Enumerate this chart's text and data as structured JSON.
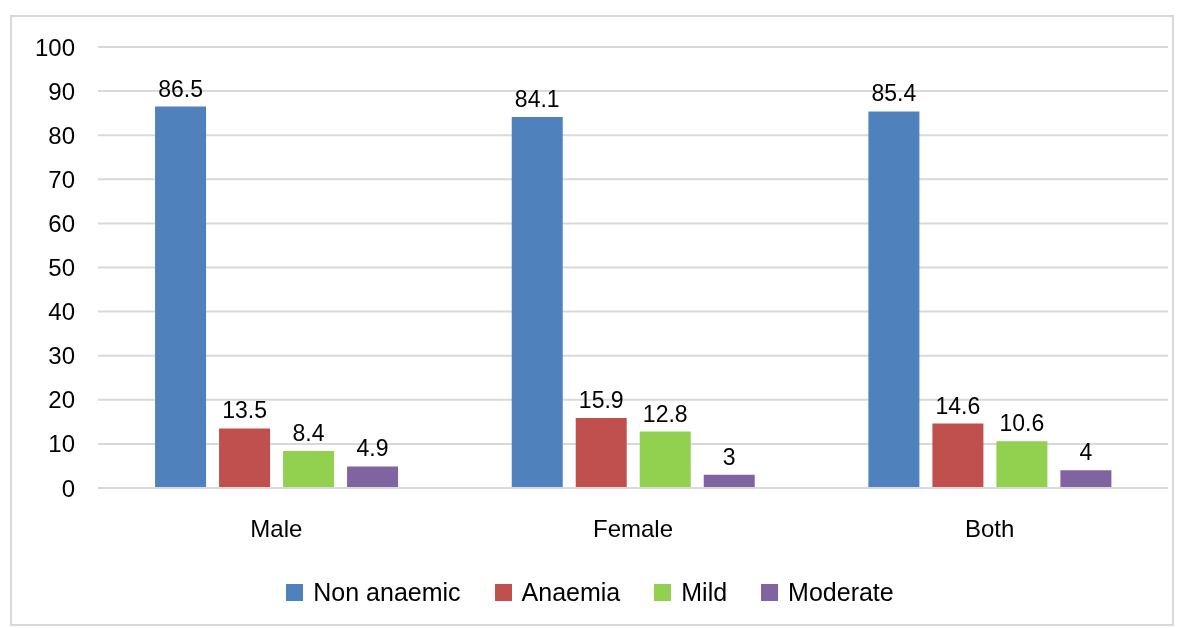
{
  "chart_data": {
    "type": "bar",
    "categories": [
      "Male",
      "Female",
      "Both"
    ],
    "series": [
      {
        "name": "Non anaemic",
        "color": "#4f81bd",
        "values": [
          86.5,
          84.1,
          85.4
        ]
      },
      {
        "name": "Anaemia",
        "color": "#c0504d",
        "values": [
          13.5,
          15.9,
          14.6
        ]
      },
      {
        "name": "Mild",
        "color": "#92d050",
        "values": [
          8.4,
          12.8,
          10.6
        ]
      },
      {
        "name": "Moderate",
        "color": "#8064a2",
        "values": [
          4.9,
          3,
          4
        ]
      }
    ],
    "ylim": [
      0,
      100
    ],
    "yticks": [
      0,
      10,
      20,
      30,
      40,
      50,
      60,
      70,
      80,
      90,
      100
    ],
    "grid": "y",
    "legend": "bottom",
    "data_labels": true
  }
}
